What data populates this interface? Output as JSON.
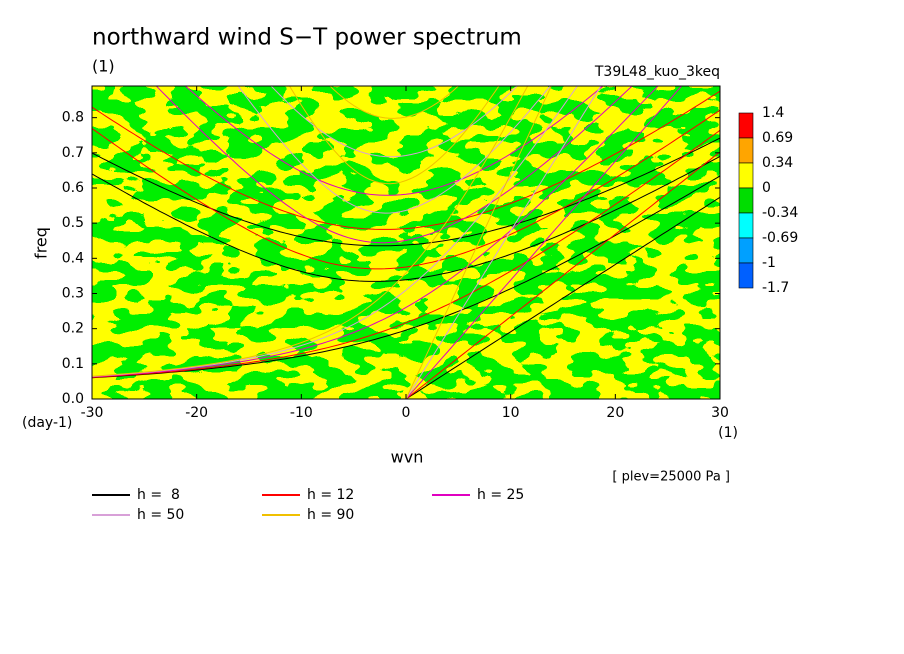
{
  "chart_data": {
    "type": "spectrum",
    "title": "northward wind S−T power spectrum",
    "subtitle": "(1)",
    "run": "T39L48_kuo_3keq",
    "xlabel": "wvn",
    "ylabel": "freq",
    "xunit": "(1)",
    "yunit": "(day-1)",
    "note": "[ plev=25000 Pa ]",
    "xlim": [
      -30,
      30
    ],
    "xticks": [
      -30,
      -20,
      -10,
      0,
      10,
      20,
      30
    ],
    "ylim": [
      0,
      0.89
    ],
    "yticks": [
      {
        "value": 0,
        "label": "0.0"
      },
      0.1,
      0.2,
      0.3,
      0.4,
      0.5,
      0.6,
      0.7,
      0.8
    ],
    "colorbar": {
      "levels": [
        1.4,
        0.69,
        0.34,
        0,
        -0.34,
        -0.69,
        -1,
        -1.7
      ],
      "colors": [
        "#ff0000",
        "#ffa500",
        "#ffff00",
        "#00dd00",
        "#00ffff",
        "#00a0ff",
        "#0060ff"
      ]
    },
    "curves": [
      {
        "name": "h =  8",
        "h": 8,
        "color": "#000000"
      },
      {
        "name": "h = 12",
        "h": 12,
        "color": "#ff0000"
      },
      {
        "name": "h = 25",
        "h": 25,
        "color": "#e000c0"
      },
      {
        "name": "h = 50",
        "h": 50,
        "color": "#d8a0d8"
      },
      {
        "name": "h = 90",
        "h": 90,
        "color": "#f0c000"
      }
    ]
  }
}
